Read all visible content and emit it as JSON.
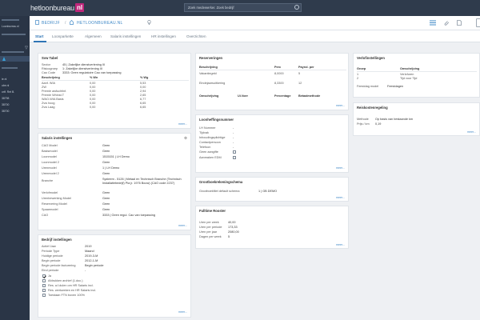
{
  "app": {
    "logo_text": "hetloonbureau",
    "logo_tld": "nl",
    "search_placeholder": "Zoek medewerker. Zoek bedrijf"
  },
  "sidebar": {
    "items": [
      {
        "label": "Loonbureau.nl"
      },
      {
        "label": "ie.nl"
      },
      {
        "label": "obe.nl"
      },
      {
        "label": "ortf. Ret B."
      },
      {
        "label": "38798"
      },
      {
        "label": "38700"
      },
      {
        "label": "38700"
      }
    ]
  },
  "breadcrumb": {
    "part1": "BEDRIJF",
    "part2": "HETLOONBUREAU.NL"
  },
  "tabs": [
    {
      "label": "Start"
    },
    {
      "label": "Loonparkette"
    },
    {
      "label": "Algemeen"
    },
    {
      "label": "Salaris instellingen"
    },
    {
      "label": "HR instellingen"
    },
    {
      "label": "Overzichten"
    }
  ],
  "more_label": "meer...",
  "sv_tabel": {
    "title": "Svw Tabel",
    "sector_label": "Sector",
    "sector_value": "45 | Zakelijke dienstverlening III",
    "risicogroep_label": "Risicogroep",
    "risicogroep_value": "1: Zakelijke dienstverlening III",
    "cao_label": "Cao Code",
    "cao_value": "3333: Geen regulatoire Cao van toepassing",
    "col1": "Beschrijving",
    "col2": "% Wn",
    "col3": "% Wg",
    "rows": [
      {
        "d": "Aanf. WIA",
        "wn": "0,00",
        "wg": "5,53"
      },
      {
        "d": "ZW",
        "wn": "0,00",
        "wg": "0,00"
      },
      {
        "d": "Premie awfuchtinf.",
        "wn": "0,00",
        "wg": "2,94"
      },
      {
        "d": "Premie Whinst.T",
        "wn": "0,00",
        "wg": "2,65"
      },
      {
        "d": "WAO-WIA Basis",
        "wn": "0,00",
        "wg": "6,77"
      },
      {
        "d": "Zvw hoog",
        "wn": "0,00",
        "wg": "6,65"
      },
      {
        "d": "Zvw Laag",
        "wn": "0,00",
        "wg": "6,65"
      }
    ]
  },
  "salaris": {
    "title": "Salaris instellingen",
    "rows": [
      {
        "k": "CAO Model",
        "v": "Geen"
      },
      {
        "k": "Basismodel",
        "v": "Geen"
      },
      {
        "k": "Loonmodel",
        "v": "1515151 | LH Demo"
      },
      {
        "k": "Loonmodel 2",
        "v": "Geen"
      },
      {
        "k": "Urenmodel",
        "v": "1 | LH Demo"
      },
      {
        "k": "Urenmodel 2",
        "v": "Geen"
      },
      {
        "k": "Branche",
        "v": "Systeem - 5126 | Metaal en Technisch Branche (Technisch Installatiebedrijf) Pia jr. 1976 Bouw) (CAO code 2237)"
      },
      {
        "k": "Verlofmodel",
        "v": "Geen"
      },
      {
        "k": "Urenbewerking Model",
        "v": "Geen"
      },
      {
        "k": "Reservering Model",
        "v": "Geen"
      },
      {
        "k": "Spaarmodel",
        "v": "Geen"
      },
      {
        "k": "CAO",
        "v": "3333 | Geen regul. Cao van toepassing"
      }
    ]
  },
  "bedrijf": {
    "title": "Bedrijf instellingen",
    "rows": [
      {
        "k": "Actief Jaar",
        "v": "2019"
      },
      {
        "k": "Periode Type",
        "v": "Maand"
      },
      {
        "k": "Huidige periode",
        "v": "2019-3-M"
      },
      {
        "k": "Begin periode",
        "v": "2012-1-M"
      },
      {
        "k": "Begin periode facturering",
        "v": "Begin periode"
      },
      {
        "k": "Eind periode",
        "v": "-"
      }
    ],
    "checks": [
      {
        "label": "Ja",
        "checked": true
      },
      {
        "label": "Afdrukken archief (1.doc.)",
        "checked": false
      },
      {
        "label": "Res. a.f.dulen om HR Salaris incl.",
        "checked": false
      },
      {
        "label": "Res. werkweken en HR Salaris incl.",
        "checked": false
      },
      {
        "label": "Toestaan FTN boven 100%",
        "checked": false
      }
    ]
  },
  "reserveringen": {
    "title": "Reserveringen",
    "col1": "Beschrijving",
    "col2": "Perc",
    "col3": "Payrol. per",
    "rows": [
      {
        "d": "Vakantiegeld",
        "p": "8,0000",
        "q": "5"
      },
      {
        "d": "Eindejaarsuitkering",
        "p": "8,3300",
        "q": "12"
      }
    ],
    "sub_col1": "Omschrijving",
    "sub_col2": "Ui.Voer",
    "sub_col3": "Percentage",
    "sub_col4": "Betaalmethode"
  },
  "loonheffingen": {
    "title": "Loonheffingsnummer",
    "rows": [
      {
        "k": "LH Nummer",
        "v": "-"
      },
      {
        "k": "Tijdvak",
        "v": "-"
      },
      {
        "k": "Inhoudingsplichtige",
        "v": "-"
      },
      {
        "k": "Contactpersoon",
        "v": "-"
      },
      {
        "k": "Telefoon",
        "v": "-"
      }
    ],
    "checks": [
      {
        "label": "Geen aangifte"
      },
      {
        "label": "Aanmaken EDM"
      }
    ]
  },
  "grootboek": {
    "title": "Grootboekrekeningschema",
    "label": "Grootboekfilet default schema",
    "value": "1 | GB DEMO"
  },
  "fulltime": {
    "title": "Fulltime Rooster",
    "rows": [
      {
        "k": "Uren per week",
        "v": "40,00"
      },
      {
        "k": "Uren per periode",
        "v": "173,33"
      },
      {
        "k": "Uren per jaar",
        "v": "2080,00"
      },
      {
        "k": "Dagen per week",
        "v": "5"
      }
    ]
  },
  "verlof": {
    "title": "Verlofinstellingen",
    "col1": "Groep",
    "col2": "Omschrijving",
    "rows": [
      {
        "g": "1",
        "o": "Verlofuren"
      },
      {
        "g": "2",
        "o": "Tijd voor Tijd"
      }
    ],
    "feestdag_label": "Feestdag model",
    "feestdag_value": "Feestdagen"
  },
  "reiskosten": {
    "title": "Reiskostenregeling",
    "methode_label": "Methode",
    "methode_value": "Op basis van bestaande km",
    "prijs_label": "Prijs / km",
    "prijs_value": "0,19"
  }
}
